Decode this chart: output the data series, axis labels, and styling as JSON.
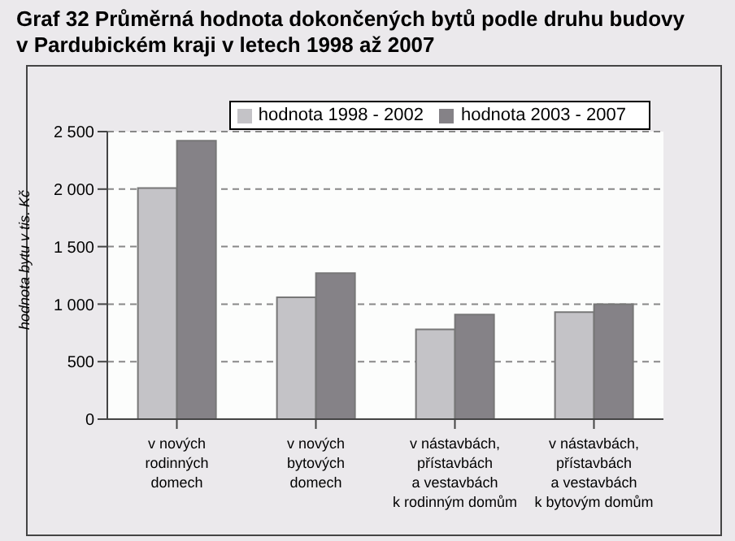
{
  "chart_data": {
    "type": "bar",
    "title": "Graf 32 Průměrná hodnota dokončených bytů podle druhu budovy\nv Pardubickém kraji v letech 1998 až 2007",
    "ylabel": "hodnota bytu v tis. Kč",
    "categories": [
      "v nových\nrodinných\ndomech",
      "v nových\nbytových\ndomech",
      "v nástavbách,\npřístavbách\na vestavbách\nk rodinným domům",
      "v nástavbách,\npřístavbách\na vestavbách\nk bytovým domům"
    ],
    "series": [
      {
        "name": "hodnota 1998 - 2002",
        "color": "#c4c3c7",
        "values": [
          2010,
          1060,
          780,
          930
        ]
      },
      {
        "name": "hodnota 2003 - 2007",
        "color": "#858287",
        "values": [
          2420,
          1270,
          910,
          1000
        ]
      }
    ],
    "ylim": [
      0,
      2500
    ],
    "yticks": [
      {
        "value": 0,
        "label": "0"
      },
      {
        "value": 500,
        "label": "500"
      },
      {
        "value": 1000,
        "label": "1 000"
      },
      {
        "value": 1500,
        "label": "1 500"
      },
      {
        "value": 2000,
        "label": "2 000"
      },
      {
        "value": 2500,
        "label": "2 500"
      }
    ],
    "grid": "y",
    "legend": "top right"
  }
}
